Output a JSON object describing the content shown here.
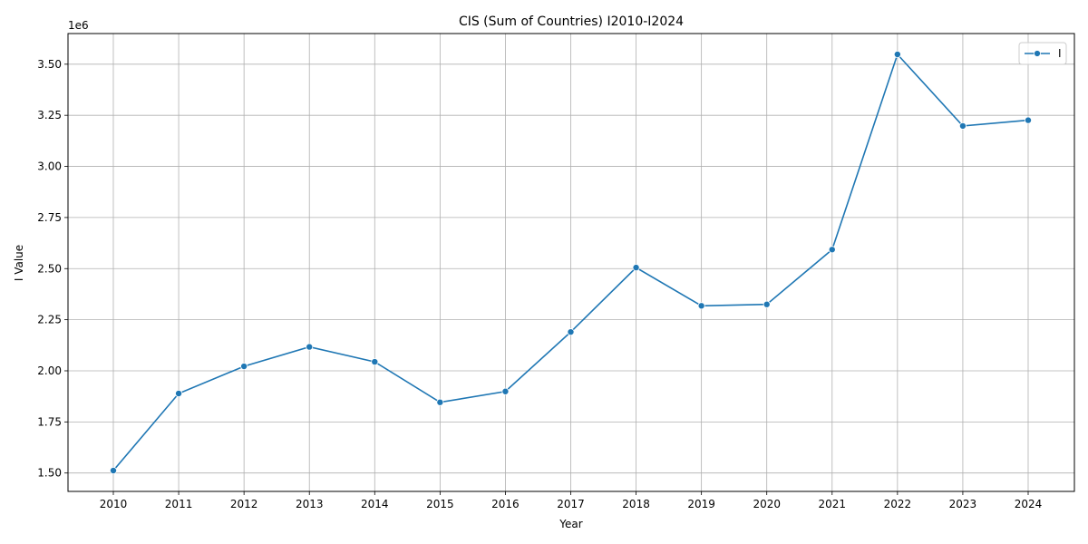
{
  "chart_data": {
    "type": "line",
    "title": "CIS (Sum of Countries) I2010-I2024",
    "xlabel": "Year",
    "ylabel": "I Value",
    "y_offset_label": "1e6",
    "grid": true,
    "legend_position": "top-right",
    "x": [
      "2010",
      "2011",
      "2012",
      "2013",
      "2014",
      "2015",
      "2016",
      "2017",
      "2018",
      "2019",
      "2020",
      "2021",
      "2022",
      "2023",
      "2024"
    ],
    "y_ticks": [
      "1.50",
      "1.75",
      "2.00",
      "2.25",
      "2.50",
      "2.75",
      "3.00",
      "3.25",
      "3.50"
    ],
    "ylim": [
      1.41,
      3.65
    ],
    "series": [
      {
        "name": "I",
        "color": "#1f77b4",
        "marker": "circle",
        "values": [
          1.512,
          1.889,
          2.022,
          2.117,
          2.044,
          1.846,
          1.899,
          2.19,
          2.505,
          2.318,
          2.325,
          2.593,
          3.548,
          3.198,
          3.226
        ]
      }
    ]
  }
}
